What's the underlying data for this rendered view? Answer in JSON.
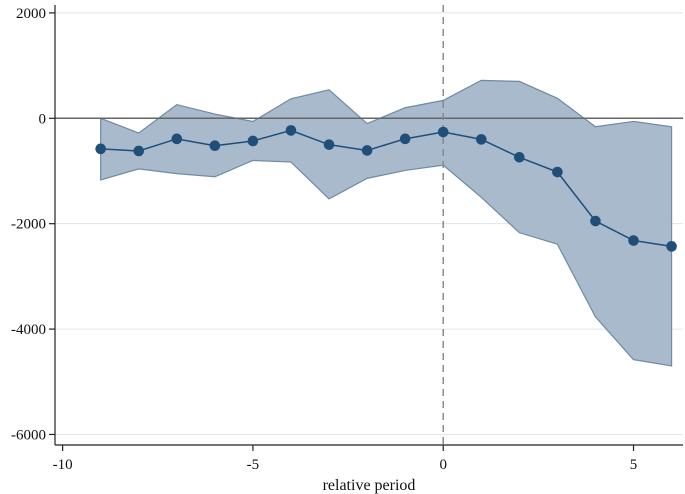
{
  "chart_data": {
    "type": "line",
    "title": "",
    "xlabel": "relative period",
    "ylabel": "",
    "xlim": [
      -10.2,
      6.3
    ],
    "ylim": [
      -6200,
      2150
    ],
    "xticks": [
      -10,
      -5,
      0,
      5
    ],
    "yticks": [
      2000,
      0,
      -2000,
      -4000,
      -6000
    ],
    "xtick_labels": [
      "-10",
      "-5",
      "0",
      "5"
    ],
    "ytick_labels": [
      "2000",
      "0",
      "-2000",
      "-4000",
      "-6000"
    ],
    "grid": "horizontal",
    "legend": "none",
    "reference_lines": {
      "y": 0,
      "x": 0
    },
    "colors": {
      "estimate": "#1f4e79",
      "band_fill": "#a3b6c9",
      "band_edge": "#6f8aa3",
      "zero_line": "#666666",
      "event_line": "#888888",
      "grid": "#dde7ee"
    },
    "series": [
      {
        "x": [
          -9,
          -8,
          -7,
          -6,
          -5,
          -4,
          -3,
          -2,
          -1,
          0,
          1,
          2,
          3,
          4,
          5,
          6
        ],
        "values": [
          -580,
          -620,
          -390,
          -520,
          -430,
          -230,
          -500,
          -610,
          -390,
          -260,
          -400,
          -740,
          -1020,
          -1950,
          -2320,
          -2430
        ],
        "upper": [
          0,
          -280,
          260,
          80,
          -60,
          370,
          540,
          -100,
          200,
          340,
          720,
          700,
          380,
          -160,
          -60,
          -160
        ],
        "lower": [
          -1170,
          -960,
          -1050,
          -1110,
          -800,
          -830,
          -1530,
          -1140,
          -990,
          -890,
          -1500,
          -2170,
          -2390,
          -3770,
          -4580,
          -4700
        ]
      }
    ]
  }
}
